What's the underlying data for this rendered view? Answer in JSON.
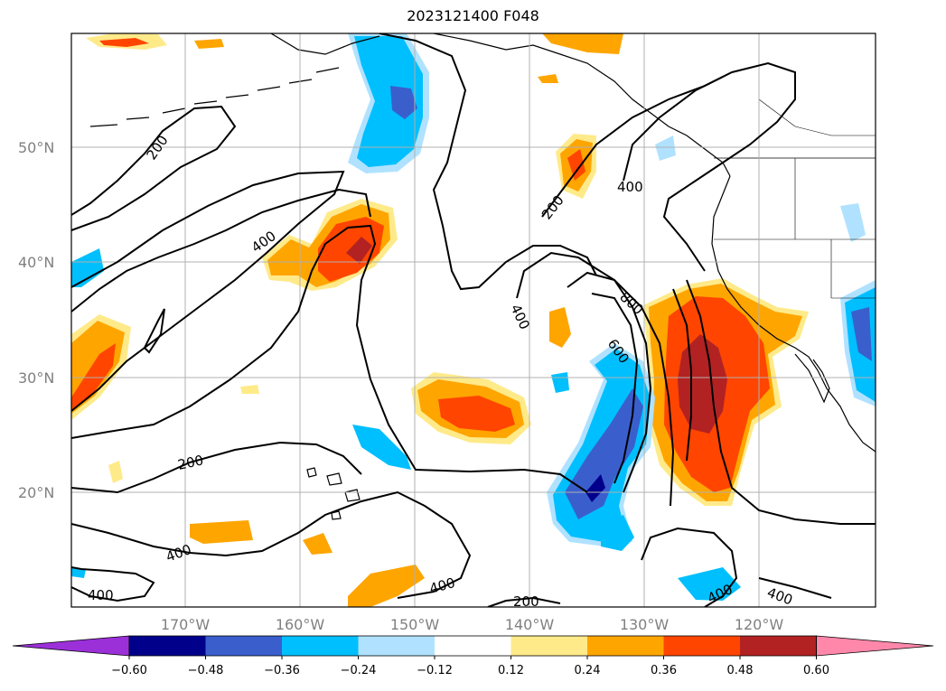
{
  "title": "2023121400 F048",
  "lat_labels": [
    "50°N",
    "40°N",
    "30°N",
    "20°N"
  ],
  "lon_labels": [
    "170°W",
    "160°W",
    "150°W",
    "140°W",
    "130°W",
    "120°W"
  ],
  "contour_labels": {
    "c200_nw": "200",
    "c400_w": "400",
    "c200_ne": "200",
    "c400_ne": "400",
    "c400_mid": "400",
    "c800": "800",
    "c600": "600",
    "c200_sw": "200",
    "c400_sw": "400",
    "c400_corner": "400",
    "c400_s": "400",
    "c200_s": "200",
    "c400_se1": "400",
    "c400_se2": "400"
  },
  "colorbar": {
    "ticks": [
      "−0.60",
      "−0.48",
      "−0.36",
      "−0.24",
      "−0.12",
      "0.12",
      "0.24",
      "0.36",
      "0.48",
      "0.60"
    ],
    "colors": [
      "#9b30d9",
      "#00008b",
      "#3a5fcd",
      "#00bfff",
      "#b0e2ff",
      "#ffffff",
      "#ffea8a",
      "#ffa500",
      "#ff4500",
      "#b22222",
      "#ff88aa"
    ]
  },
  "map_colors": {
    "grid": "#b0b0b0",
    "contour": "#000000",
    "coast": "#000000"
  }
}
